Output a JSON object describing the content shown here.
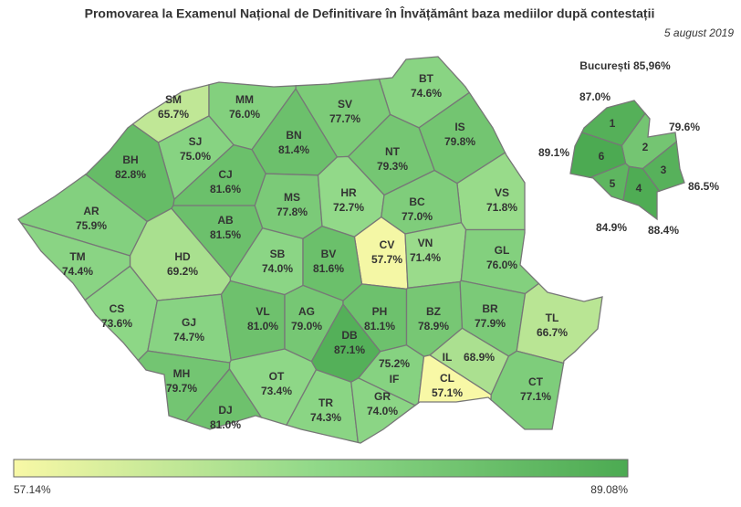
{
  "title": "Promovarea la Examenul Național de Definitivare în Învățământ baza mediilor după contestații",
  "date": "5 august 2019",
  "colorbar": {
    "colors": [
      "#f8f8a6",
      "#8fd888",
      "#4caa52"
    ],
    "min": {
      "value": 57.14,
      "label": "57.14%"
    },
    "max": {
      "value": 89.08,
      "label": "89.08%"
    }
  },
  "counties": [
    {
      "code": "SM",
      "value": 65.7,
      "label": "65.7%"
    },
    {
      "code": "MM",
      "value": 76.0,
      "label": "76.0%"
    },
    {
      "code": "BT",
      "value": 74.6,
      "label": "74.6%"
    },
    {
      "code": "SV",
      "value": 77.7,
      "label": "77.7%"
    },
    {
      "code": "IS",
      "value": 79.8,
      "label": "79.8%"
    },
    {
      "code": "SJ",
      "value": 75.0,
      "label": "75.0%"
    },
    {
      "code": "BN",
      "value": 81.4,
      "label": "81.4%"
    },
    {
      "code": "BH",
      "value": 82.8,
      "label": "82.8%"
    },
    {
      "code": "CJ",
      "value": 81.6,
      "label": "81.6%"
    },
    {
      "code": "NT",
      "value": 79.3,
      "label": "79.3%"
    },
    {
      "code": "VS",
      "value": 71.8,
      "label": "71.8%"
    },
    {
      "code": "AR",
      "value": 75.9,
      "label": "75.9%"
    },
    {
      "code": "AB",
      "value": 81.5,
      "label": "81.5%"
    },
    {
      "code": "MS",
      "value": 77.8,
      "label": "77.8%"
    },
    {
      "code": "HR",
      "value": 72.7,
      "label": "72.7%"
    },
    {
      "code": "BC",
      "value": 77.0,
      "label": "77.0%"
    },
    {
      "code": "HD",
      "value": 69.2,
      "label": "69.2%"
    },
    {
      "code": "CV",
      "value": 57.7,
      "label": "57.7%"
    },
    {
      "code": "VN",
      "value": 71.4,
      "label": "71.4%"
    },
    {
      "code": "GL",
      "value": 76.0,
      "label": "76.0%"
    },
    {
      "code": "TM",
      "value": 74.4,
      "label": "74.4%"
    },
    {
      "code": "SB",
      "value": 74.0,
      "label": "74.0%"
    },
    {
      "code": "BV",
      "value": 81.6,
      "label": "81.6%"
    },
    {
      "code": "CS",
      "value": 73.6,
      "label": "73.6%"
    },
    {
      "code": "GJ",
      "value": 74.7,
      "label": "74.7%"
    },
    {
      "code": "VL",
      "value": 81.0,
      "label": "81.0%"
    },
    {
      "code": "AG",
      "value": 79.0,
      "label": "79.0%"
    },
    {
      "code": "PH",
      "value": 81.1,
      "label": "81.1%"
    },
    {
      "code": "BZ",
      "value": 78.9,
      "label": "78.9%"
    },
    {
      "code": "BR",
      "value": 77.9,
      "label": "77.9%"
    },
    {
      "code": "TL",
      "value": 66.7,
      "label": "66.7%"
    },
    {
      "code": "DB",
      "value": 87.1,
      "label": "87.1%"
    },
    {
      "code": "MH",
      "value": 79.7,
      "label": "79.7%"
    },
    {
      "code": "DJ",
      "value": 81.0,
      "label": "81.0%"
    },
    {
      "code": "OT",
      "value": 73.4,
      "label": "73.4%"
    },
    {
      "code": "TR",
      "value": 74.3,
      "label": "74.3%"
    },
    {
      "code": "GR",
      "value": 74.0,
      "label": "74.0%"
    },
    {
      "code": "IF",
      "value": 75.2,
      "label": "75.2%"
    },
    {
      "code": "IL",
      "value": 68.9,
      "label": "68.9%"
    },
    {
      "code": "CL",
      "value": 57.1,
      "label": "57.1%"
    },
    {
      "code": "CT",
      "value": 77.1,
      "label": "77.1%"
    }
  ],
  "bucharest": {
    "title": "București 85,96%",
    "sectors": [
      {
        "name": "1",
        "value": 87.0,
        "label": "87.0%"
      },
      {
        "name": "2",
        "value": 79.6,
        "label": "79.6%"
      },
      {
        "name": "3",
        "value": 86.5,
        "label": "86.5%"
      },
      {
        "name": "4",
        "value": 88.4,
        "label": "88.4%"
      },
      {
        "name": "5",
        "value": 84.9,
        "label": "84.9%"
      },
      {
        "name": "6",
        "value": 89.1,
        "label": "89.1%"
      }
    ]
  }
}
